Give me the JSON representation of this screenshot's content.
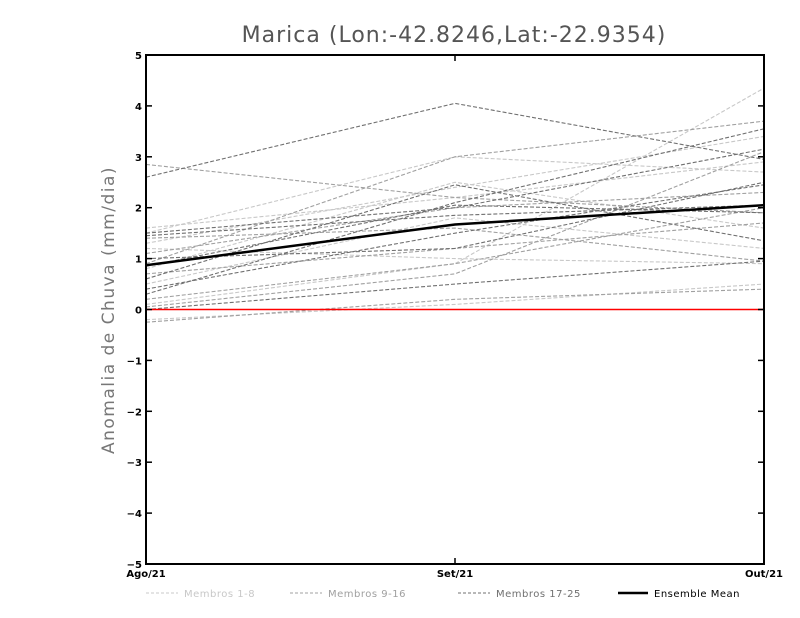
{
  "chart_data": {
    "type": "line",
    "title": "Marica (Lon:-42.8246,Lat:-22.9354)",
    "xlabel": "",
    "ylabel": "Anomalia de Chuva (mm/dia)",
    "categories": [
      "Ago/21",
      "Set/21",
      "Out/21"
    ],
    "ylim": [
      -5,
      5
    ],
    "yticks": [
      "5",
      "4",
      "3",
      "2",
      "1",
      "0",
      "-1",
      "-2",
      "-3",
      "-4",
      "-5"
    ],
    "grid": false,
    "legend_placement": "bottom",
    "reference_line": {
      "y": 0,
      "color": "#ff0000"
    },
    "series": [
      {
        "group": "Membros 1-8",
        "values": [
          1.6,
          2.2,
          2.9
        ]
      },
      {
        "group": "Membros 1-8",
        "values": [
          0.1,
          0.9,
          4.35
        ]
      },
      {
        "group": "Membros 1-8",
        "values": [
          1.2,
          1.0,
          0.9
        ]
      },
      {
        "group": "Membros 1-8",
        "values": [
          0.8,
          2.5,
          1.6
        ]
      },
      {
        "group": "Membros 1-8",
        "values": [
          -0.2,
          0.1,
          0.5
        ]
      },
      {
        "group": "Membros 1-8",
        "values": [
          1.5,
          3.0,
          2.7
        ]
      },
      {
        "group": "Membros 1-8",
        "values": [
          0.5,
          1.8,
          1.2
        ]
      },
      {
        "group": "Membros 1-8",
        "values": [
          1.3,
          2.4,
          3.4
        ]
      },
      {
        "group": "Membros 9-16",
        "values": [
          2.85,
          2.2,
          1.9
        ]
      },
      {
        "group": "Membros 9-16",
        "values": [
          0.9,
          3.0,
          3.7
        ]
      },
      {
        "group": "Membros 9-16",
        "values": [
          0.05,
          0.7,
          3.1
        ]
      },
      {
        "group": "Membros 9-16",
        "values": [
          1.1,
          2.0,
          2.3
        ]
      },
      {
        "group": "Membros 9-16",
        "values": [
          -0.25,
          0.2,
          0.4
        ]
      },
      {
        "group": "Membros 9-16",
        "values": [
          0.7,
          1.2,
          1.7
        ]
      },
      {
        "group": "Membros 9-16",
        "values": [
          1.4,
          1.6,
          0.95
        ]
      },
      {
        "group": "Membros 9-16",
        "values": [
          0.2,
          0.9,
          2.0
        ]
      },
      {
        "group": "Membros 17-25",
        "values": [
          2.6,
          4.05,
          2.95
        ]
      },
      {
        "group": "Membros 17-25",
        "values": [
          1.5,
          2.0,
          3.15
        ]
      },
      {
        "group": "Membros 17-25",
        "values": [
          0.6,
          2.45,
          1.35
        ]
      },
      {
        "group": "Membros 17-25",
        "values": [
          1.0,
          1.2,
          2.5
        ]
      },
      {
        "group": "Membros 17-25",
        "values": [
          0.3,
          2.1,
          3.55
        ]
      },
      {
        "group": "Membros 17-25",
        "values": [
          1.45,
          1.85,
          2.05
        ]
      },
      {
        "group": "Membros 17-25",
        "values": [
          0.0,
          0.5,
          0.95
        ]
      },
      {
        "group": "Membros 17-25",
        "values": [
          0.85,
          2.05,
          1.9
        ]
      },
      {
        "group": "Membros 17-25",
        "values": [
          0.4,
          1.5,
          2.45
        ]
      },
      {
        "group": "Ensemble Mean",
        "values": [
          0.87,
          1.67,
          2.05
        ]
      }
    ],
    "legend": [
      {
        "label": "Membros 1-8",
        "color": "#c8c8c8",
        "style": "dashed"
      },
      {
        "label": "Membros 9-16",
        "color": "#a0a0a0",
        "style": "dashed"
      },
      {
        "label": "Membros 17-25",
        "color": "#707070",
        "style": "dashed"
      },
      {
        "label": "Ensemble Mean",
        "color": "#000000",
        "style": "solid"
      }
    ],
    "group_colors": {
      "Membros 1-8": "#c8c8c8",
      "Membros 9-16": "#a0a0a0",
      "Membros 17-25": "#707070",
      "Ensemble Mean": "#000000"
    }
  }
}
